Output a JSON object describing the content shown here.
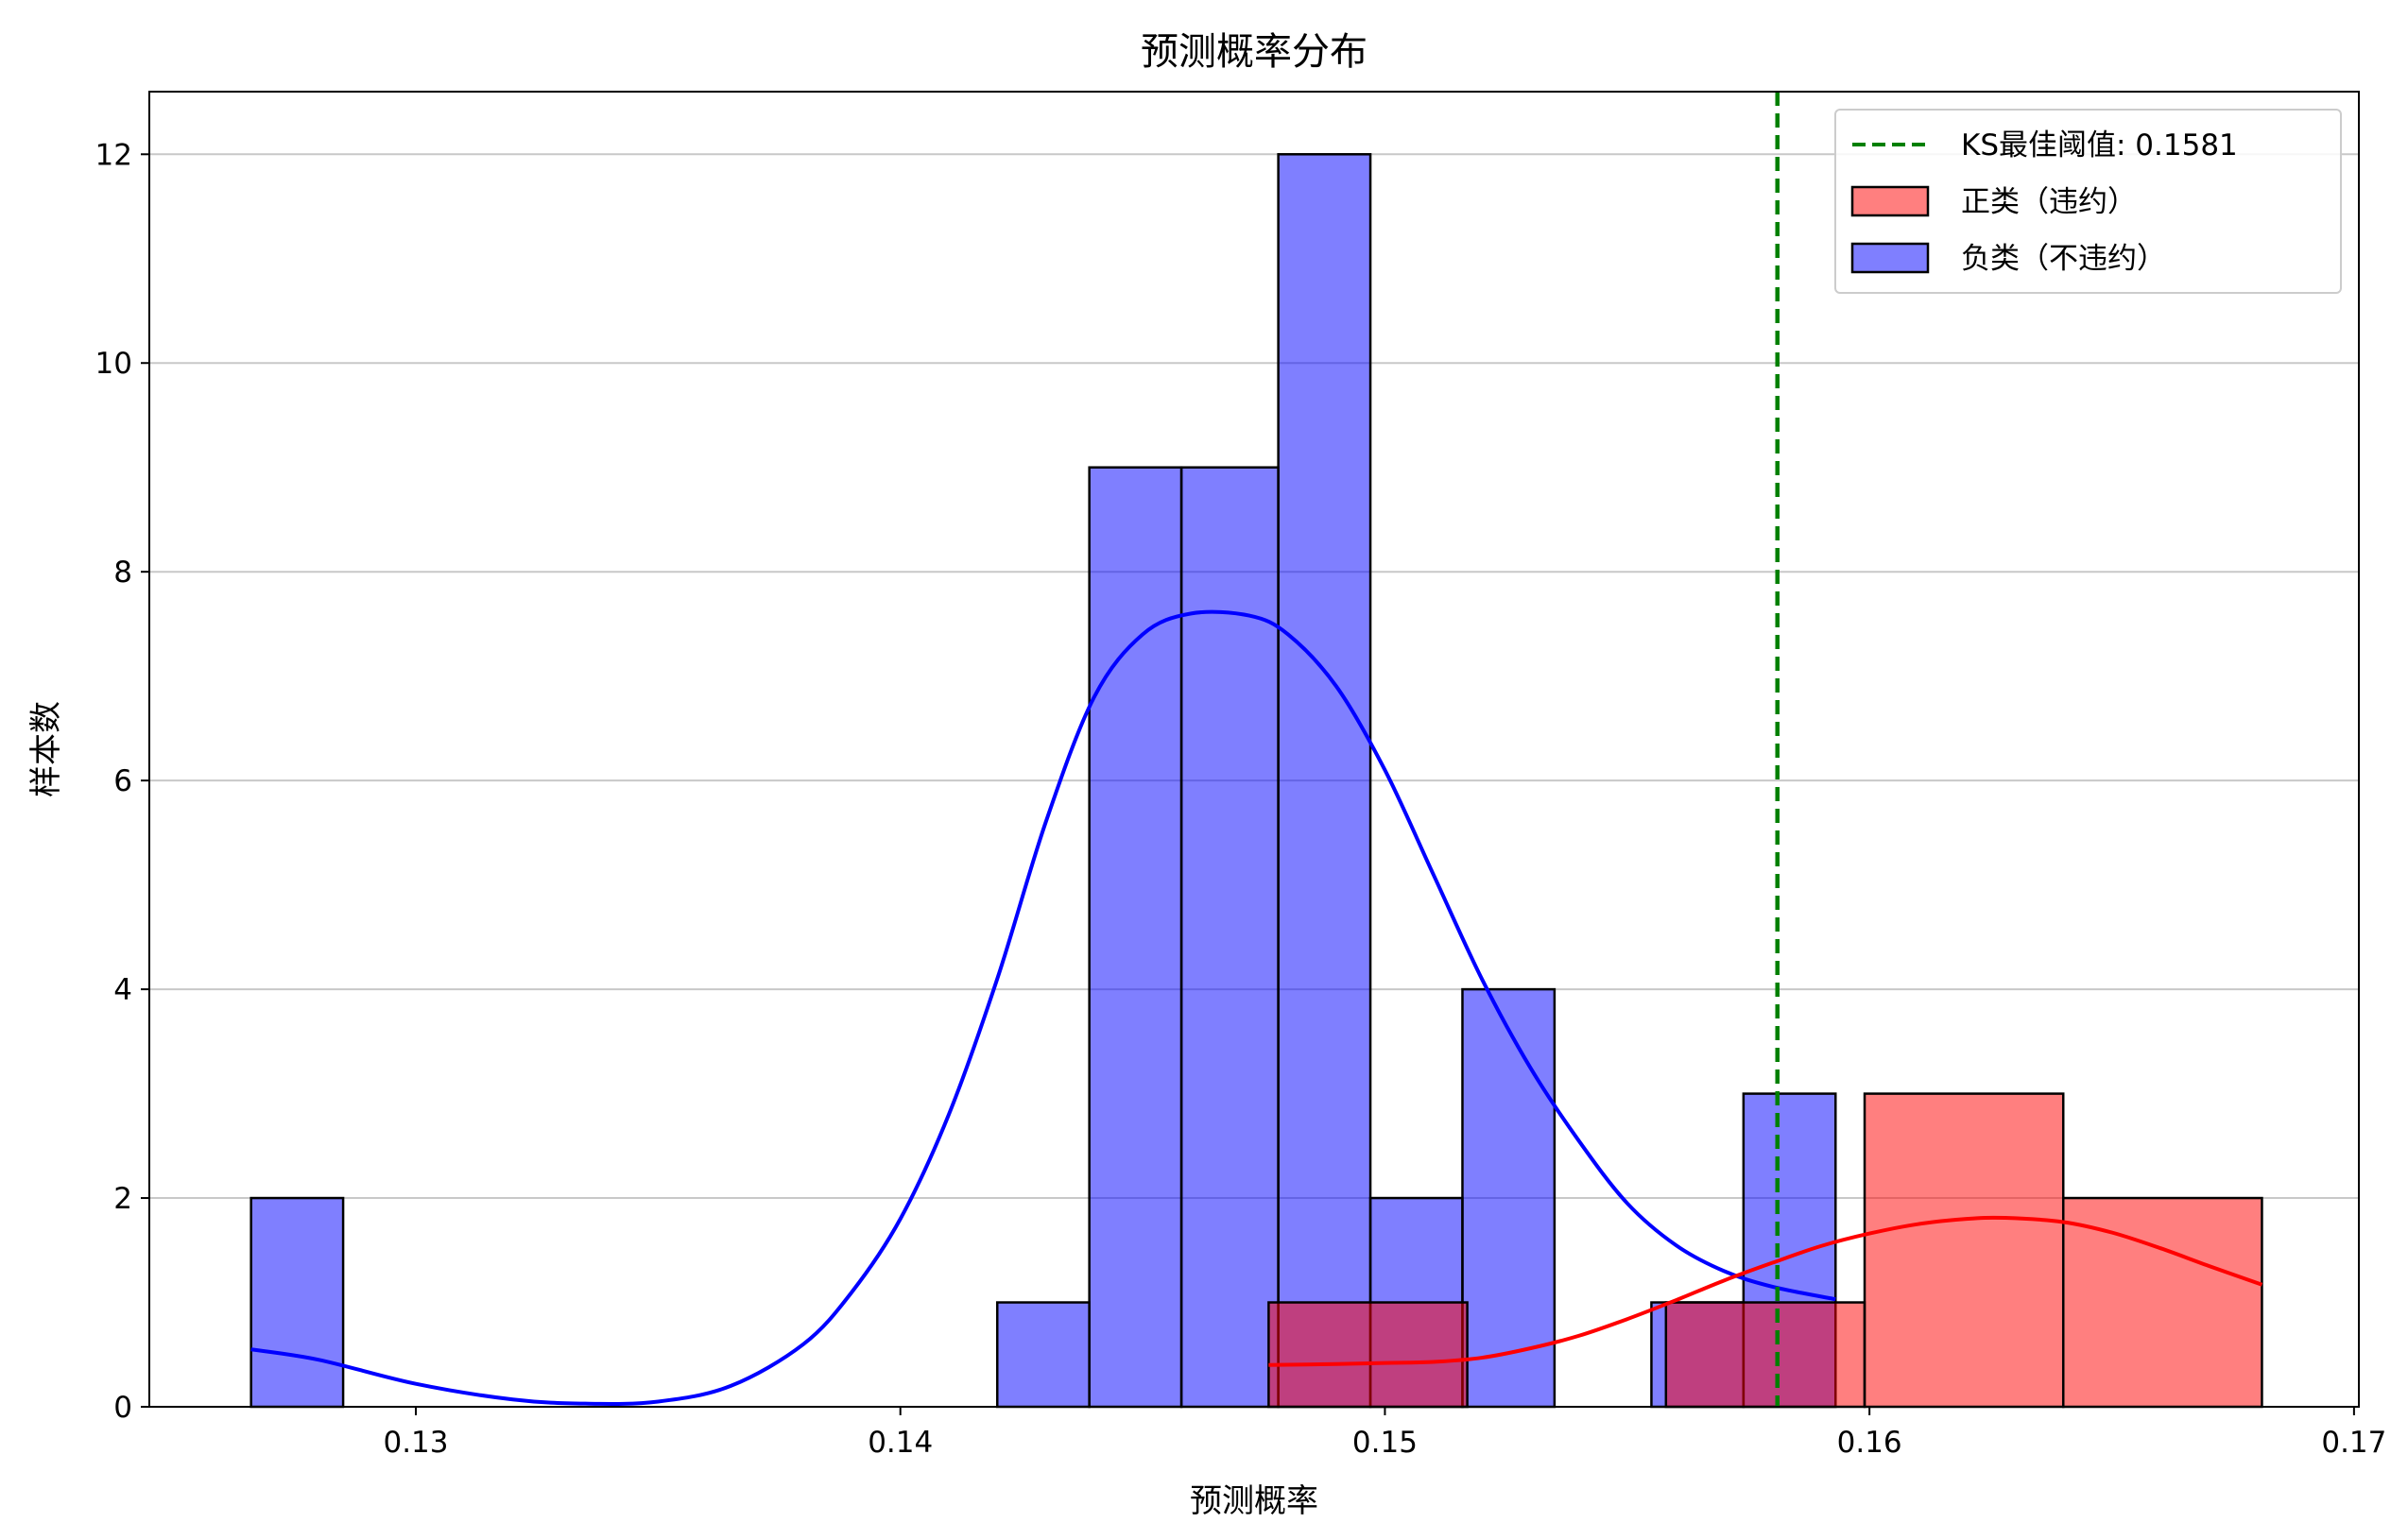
{
  "chart_data": {
    "type": "histogram",
    "title": "预测概率分布",
    "xlabel": "预测概率",
    "ylabel": "样本数",
    "xlim": [
      0.1245,
      0.1701
    ],
    "ylim": [
      0,
      12.6
    ],
    "xticks": [
      0.13,
      0.14,
      0.15,
      0.16,
      0.17
    ],
    "xtick_labels": [
      "0.13",
      "0.14",
      "0.15",
      "0.16",
      "0.17"
    ],
    "yticks": [
      0,
      2,
      4,
      6,
      8,
      10,
      12
    ],
    "ytick_labels": [
      "0",
      "2",
      "4",
      "6",
      "8",
      "10",
      "12"
    ],
    "grid": "y",
    "legend_position": "top-right",
    "threshold": {
      "value": 0.1581,
      "label": "KS最佳阈值: 0.1581",
      "color": "#008000",
      "style": "dashed"
    },
    "series": [
      {
        "name": "负类（不违约）",
        "color": "#0000ff",
        "fill_alpha": 0.5,
        "bins": [
          {
            "x0": 0.1266,
            "x1": 0.1285,
            "count": 2
          },
          {
            "x0": 0.142,
            "x1": 0.1439,
            "count": 1
          },
          {
            "x0": 0.1439,
            "x1": 0.1458,
            "count": 9
          },
          {
            "x0": 0.1458,
            "x1": 0.1478,
            "count": 9
          },
          {
            "x0": 0.1478,
            "x1": 0.1497,
            "count": 12
          },
          {
            "x0": 0.1497,
            "x1": 0.1516,
            "count": 2
          },
          {
            "x0": 0.1516,
            "x1": 0.1535,
            "count": 4
          },
          {
            "x0": 0.1555,
            "x1": 0.1574,
            "count": 1
          },
          {
            "x0": 0.1574,
            "x1": 0.1593,
            "count": 3
          }
        ],
        "kde": {
          "x": [
            0.1266,
            0.128,
            0.13,
            0.132,
            0.1335,
            0.135,
            0.1365,
            0.138,
            0.139,
            0.14,
            0.141,
            0.142,
            0.143,
            0.144,
            0.145,
            0.146,
            0.1472,
            0.148,
            0.149,
            0.15,
            0.151,
            0.152,
            0.153,
            0.154,
            0.155,
            0.156,
            0.157,
            0.158,
            0.1593
          ],
          "y": [
            0.55,
            0.45,
            0.22,
            0.07,
            0.03,
            0.05,
            0.2,
            0.6,
            1.1,
            1.8,
            2.8,
            4.1,
            5.6,
            6.8,
            7.4,
            7.6,
            7.58,
            7.4,
            6.9,
            6.1,
            5.1,
            4.1,
            3.25,
            2.55,
            1.95,
            1.55,
            1.3,
            1.15,
            1.03
          ]
        }
      },
      {
        "name": "正类（违约）",
        "color": "#ff0000",
        "fill_alpha": 0.5,
        "bins": [
          {
            "x0": 0.1476,
            "x1": 0.1517,
            "count": 1
          },
          {
            "x0": 0.1558,
            "x1": 0.1599,
            "count": 1
          },
          {
            "x0": 0.1599,
            "x1": 0.164,
            "count": 3
          },
          {
            "x0": 0.164,
            "x1": 0.1681,
            "count": 2
          }
        ],
        "kde": {
          "x": [
            0.1476,
            0.149,
            0.15,
            0.151,
            0.152,
            0.153,
            0.154,
            0.155,
            0.156,
            0.157,
            0.158,
            0.159,
            0.16,
            0.161,
            0.162,
            0.1628,
            0.164,
            0.165,
            0.166,
            0.167,
            0.1681
          ],
          "y": [
            0.4,
            0.41,
            0.42,
            0.43,
            0.47,
            0.56,
            0.68,
            0.84,
            1.02,
            1.21,
            1.38,
            1.54,
            1.66,
            1.75,
            1.8,
            1.81,
            1.77,
            1.67,
            1.52,
            1.35,
            1.17
          ]
        }
      }
    ]
  }
}
